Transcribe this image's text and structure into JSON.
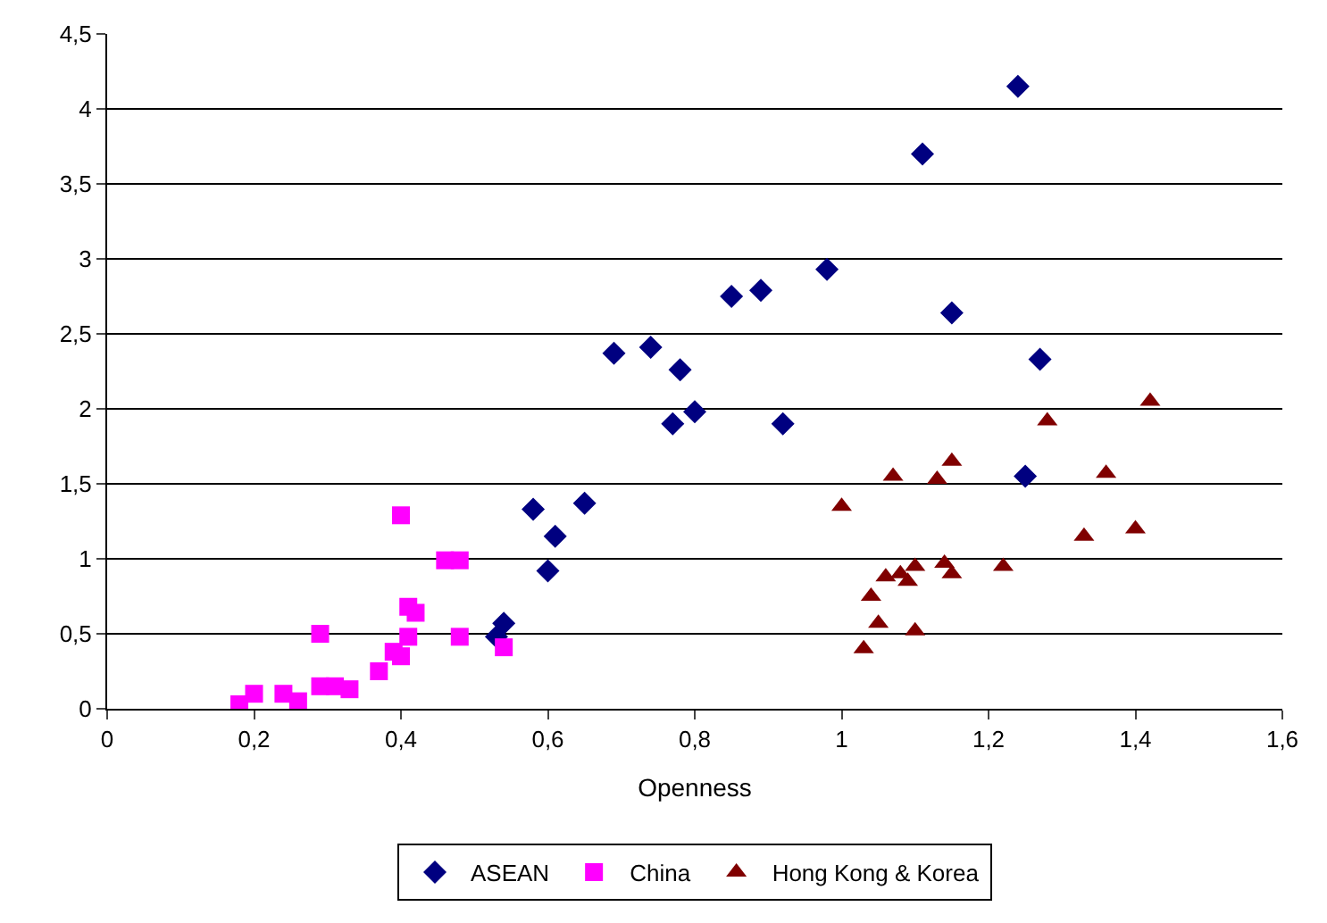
{
  "chart_data": {
    "type": "scatter",
    "xlabel": "Openness",
    "xlim": [
      0,
      1.6
    ],
    "xticks": [
      0,
      {
        "value": 0.2,
        "label": "0,2"
      },
      {
        "value": 0.4,
        "label": "0,4"
      },
      {
        "value": 0.6,
        "label": "0,6"
      },
      {
        "value": 0.8,
        "label": "0,8"
      },
      1,
      {
        "value": 1.2,
        "label": "1,2"
      },
      {
        "value": 1.4,
        "label": "1,4"
      },
      {
        "value": 1.6,
        "label": "1,6"
      }
    ],
    "ylim": [
      0,
      4.5
    ],
    "yticks": [
      0,
      {
        "value": 0.5,
        "label": "0,5"
      },
      1,
      {
        "value": 1.5,
        "label": "1,5"
      },
      2,
      {
        "value": 2.5,
        "label": "2,5"
      },
      3,
      {
        "value": 3.5,
        "label": "3,5"
      },
      4,
      {
        "value": 4.5,
        "label": "4,5"
      }
    ],
    "grid": "y",
    "legend": "bottom",
    "series": [
      {
        "name": "ASEAN",
        "color": "#000080",
        "marker": "diamond",
        "x": [
          0.53,
          0.54,
          0.58,
          0.61,
          0.6,
          0.65,
          0.69,
          0.74,
          0.78,
          0.77,
          0.8,
          0.85,
          0.89,
          0.92,
          0.98,
          1.11,
          1.15,
          1.24,
          1.27,
          1.25
        ],
        "values": [
          0.48,
          0.57,
          1.33,
          1.15,
          0.92,
          1.37,
          2.37,
          2.41,
          2.26,
          1.9,
          1.98,
          2.75,
          2.79,
          1.9,
          2.93,
          3.7,
          2.64,
          4.15,
          2.33,
          1.55
        ]
      },
      {
        "name": "China",
        "color": "#ff00ff",
        "marker": "square",
        "x": [
          0.18,
          0.2,
          0.24,
          0.26,
          0.29,
          0.29,
          0.31,
          0.33,
          0.37,
          0.39,
          0.4,
          0.4,
          0.41,
          0.41,
          0.42,
          0.46,
          0.48,
          0.48,
          0.54
        ],
        "values": [
          0.03,
          0.1,
          0.1,
          0.05,
          0.5,
          0.15,
          0.15,
          0.13,
          0.25,
          0.38,
          0.35,
          1.29,
          0.48,
          0.68,
          0.64,
          0.99,
          0.99,
          0.48,
          0.41
        ]
      },
      {
        "name": "Hong Kong & Korea",
        "color": "#800000",
        "marker": "triangle",
        "x": [
          1.0,
          1.03,
          1.04,
          1.05,
          1.06,
          1.07,
          1.08,
          1.09,
          1.1,
          1.1,
          1.13,
          1.14,
          1.15,
          1.15,
          1.22,
          1.28,
          1.33,
          1.36,
          1.4,
          1.42
        ],
        "values": [
          1.35,
          0.4,
          0.75,
          0.57,
          0.88,
          1.55,
          0.9,
          0.85,
          0.95,
          0.52,
          1.53,
          0.97,
          0.9,
          1.65,
          0.95,
          1.92,
          1.15,
          1.57,
          1.2,
          2.05
        ]
      }
    ]
  }
}
